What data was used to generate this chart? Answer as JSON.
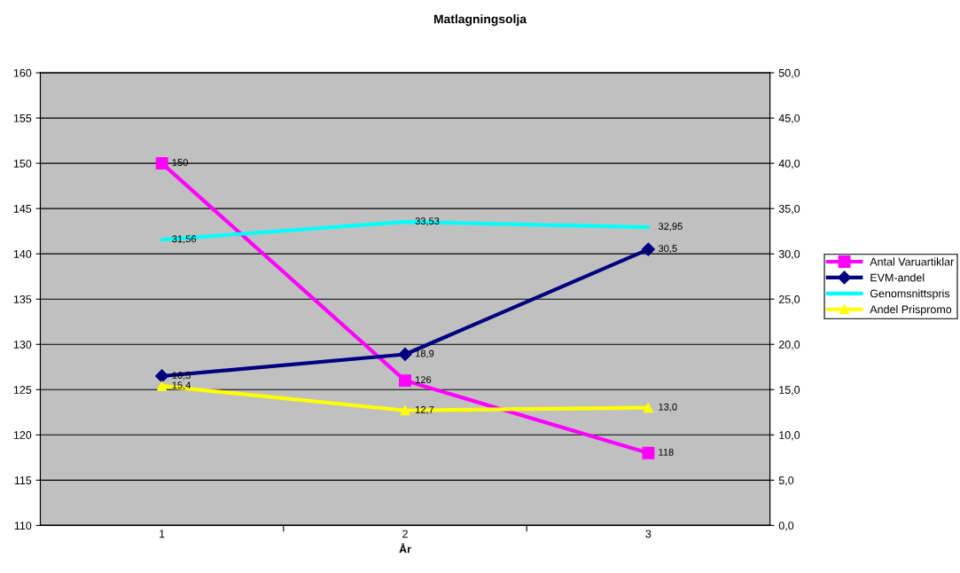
{
  "chart_data": {
    "type": "line",
    "title": "Matlagningsolja",
    "xlabel": "År",
    "categories": [
      "1",
      "2",
      "3"
    ],
    "ylim": [
      110,
      160
    ],
    "yticks": [
      110,
      115,
      120,
      125,
      130,
      135,
      140,
      145,
      150,
      155,
      160
    ],
    "y2lim": [
      0,
      50
    ],
    "y2ticks": [
      {
        "value": 0,
        "label": "0,0"
      },
      {
        "value": 5,
        "label": "5,0"
      },
      {
        "value": 10,
        "label": "10,0"
      },
      {
        "value": 15,
        "label": "15,0"
      },
      {
        "value": 20,
        "label": "20,0"
      },
      {
        "value": 25,
        "label": "25,0"
      },
      {
        "value": 30,
        "label": "30,0"
      },
      {
        "value": 35,
        "label": "35,0"
      },
      {
        "value": 40,
        "label": "40,0"
      },
      {
        "value": 45,
        "label": "45,0"
      },
      {
        "value": 50,
        "label": "50,0"
      }
    ],
    "grid": "y",
    "legend": "right",
    "series": [
      {
        "name": "Antal Varuartiklar",
        "color": "#ff00ff",
        "marker": "square",
        "values": [
          150,
          126,
          118
        ],
        "value_labels": [
          "150",
          "126",
          "118"
        ]
      },
      {
        "name": "EVM-andel",
        "color": "#000080",
        "marker": "diamond",
        "axis": "y2",
        "values": [
          16.5,
          18.9,
          30.5
        ],
        "value_labels": [
          "16,5",
          "18,9",
          "30,5"
        ]
      },
      {
        "name": "Genomsnittspris",
        "color": "#00ffff",
        "marker": "none",
        "axis": "y2",
        "values": [
          31.56,
          33.53,
          32.95
        ],
        "value_labels": [
          "31,56",
          "33,53",
          "32,95"
        ]
      },
      {
        "name": "Andel Prispromo",
        "color": "#ffff00",
        "marker": "triangle",
        "axis": "y2",
        "values": [
          15.4,
          12.7,
          13.0
        ],
        "value_labels": [
          "15,4",
          "12,7",
          "13,0"
        ]
      }
    ]
  }
}
